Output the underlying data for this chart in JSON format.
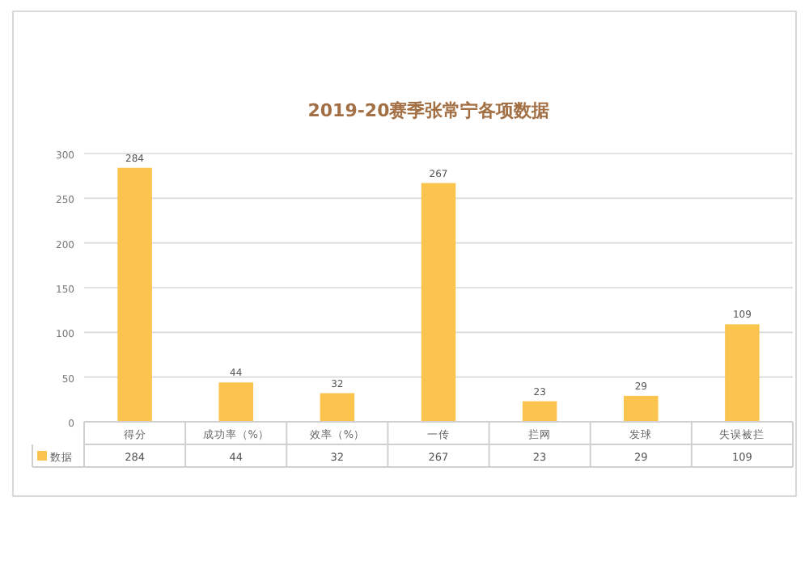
{
  "chart_data": {
    "type": "bar",
    "title": "2019-20赛季张常宁各项数据",
    "categories": [
      "得分",
      "成功率（%）",
      "效率（%）",
      "一传",
      "拦网",
      "发球",
      "失误被拦"
    ],
    "series": [
      {
        "name": "数据",
        "color": "#fbc44e",
        "values": [
          284,
          44,
          32,
          267,
          23,
          29,
          109
        ],
        "value_labels": [
          "284",
          "44",
          "32",
          "267",
          "23",
          "29",
          "109"
        ]
      }
    ],
    "ylim": [
      0,
      300
    ],
    "yticks": [
      0,
      50,
      100,
      150,
      200,
      250,
      300
    ],
    "grid": "y",
    "legend": "bottom",
    "annotations": [
      "284",
      "44",
      "32",
      "267",
      "23",
      "29",
      "109"
    ]
  }
}
